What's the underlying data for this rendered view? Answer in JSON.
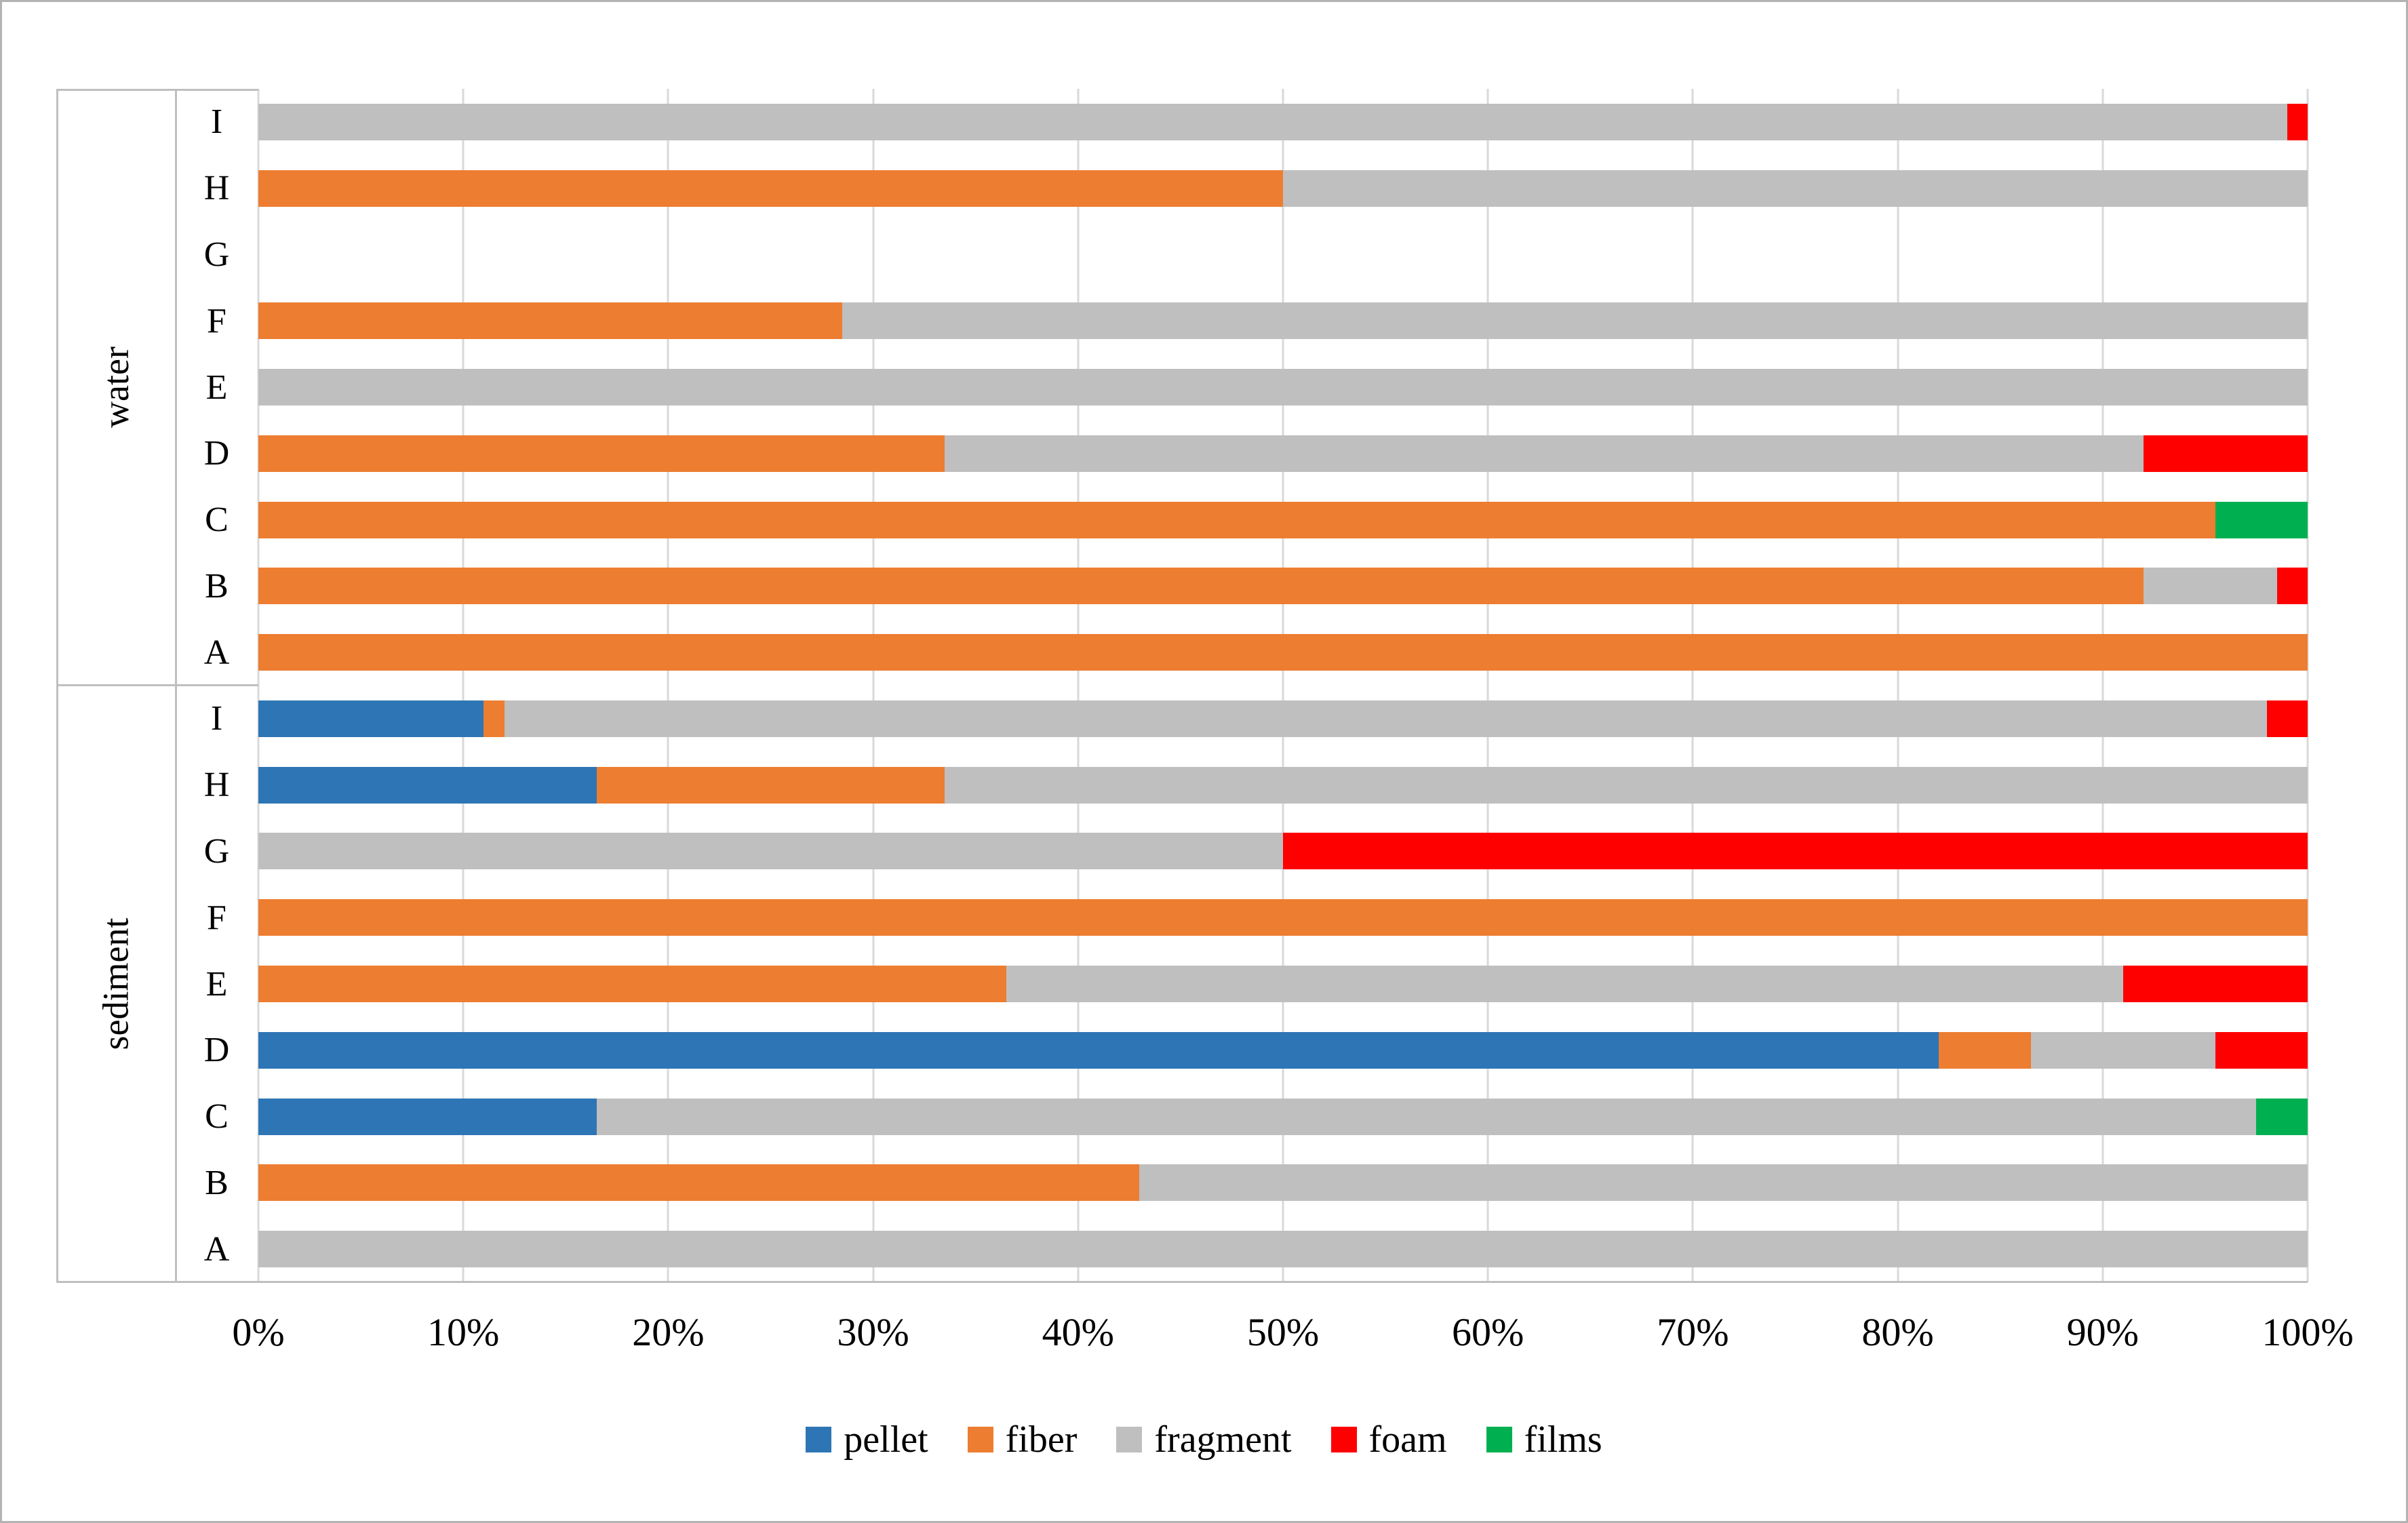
{
  "figure": {
    "background": "#ffffff",
    "border_color": "#b3b3b3",
    "gridline_color": "#d9d9d9",
    "axis_line_color": "#bfbfbf"
  },
  "chart_data": {
    "type": "bar",
    "orientation": "horizontal",
    "stacked": true,
    "title": "",
    "xlabel": "",
    "ylabel": "",
    "x_axis": {
      "min": 0,
      "max": 100,
      "unit": "%",
      "ticks": [
        "0%",
        "10%",
        "20%",
        "30%",
        "40%",
        "50%",
        "60%",
        "70%",
        "80%",
        "90%",
        "100%"
      ],
      "gridlines": true
    },
    "groups": [
      "water",
      "sediment"
    ],
    "series_names": [
      "pellet",
      "fiber",
      "fragment",
      "foam",
      "films"
    ],
    "series_colors": {
      "pellet": "#2E75B6",
      "fiber": "#ED7D31",
      "fragment": "#BFBFBF",
      "foam": "#FF0000",
      "films": "#00B050"
    },
    "legend": {
      "position": "bottom",
      "items": [
        {
          "label": "pellet",
          "color": "#2E75B6"
        },
        {
          "label": "fiber",
          "color": "#ED7D31"
        },
        {
          "label": "fragment",
          "color": "#BFBFBF"
        },
        {
          "label": "foam",
          "color": "#FF0000"
        },
        {
          "label": "films",
          "color": "#00B050"
        }
      ]
    },
    "rows": [
      {
        "group": "water",
        "label": "I",
        "values": {
          "pellet": 0,
          "fiber": 0,
          "fragment": 99,
          "foam": 1,
          "films": 0
        }
      },
      {
        "group": "water",
        "label": "H",
        "values": {
          "pellet": 0,
          "fiber": 50,
          "fragment": 50,
          "foam": 0,
          "films": 0
        }
      },
      {
        "group": "water",
        "label": "G",
        "values": {
          "pellet": 0,
          "fiber": 0,
          "fragment": 0,
          "foam": 0,
          "films": 0
        }
      },
      {
        "group": "water",
        "label": "F",
        "values": {
          "pellet": 0,
          "fiber": 28.5,
          "fragment": 71.5,
          "foam": 0,
          "films": 0
        }
      },
      {
        "group": "water",
        "label": "E",
        "values": {
          "pellet": 0,
          "fiber": 0,
          "fragment": 100,
          "foam": 0,
          "films": 0
        }
      },
      {
        "group": "water",
        "label": "D",
        "values": {
          "pellet": 0,
          "fiber": 33.5,
          "fragment": 58.5,
          "foam": 8,
          "films": 0
        }
      },
      {
        "group": "water",
        "label": "C",
        "values": {
          "pellet": 0,
          "fiber": 95.5,
          "fragment": 0,
          "foam": 0,
          "films": 4.5
        }
      },
      {
        "group": "water",
        "label": "B",
        "values": {
          "pellet": 0,
          "fiber": 92,
          "fragment": 6.5,
          "foam": 1.5,
          "films": 0
        }
      },
      {
        "group": "water",
        "label": "A",
        "values": {
          "pellet": 0,
          "fiber": 100,
          "fragment": 0,
          "foam": 0,
          "films": 0
        }
      },
      {
        "group": "sediment",
        "label": "I",
        "values": {
          "pellet": 11,
          "fiber": 1,
          "fragment": 86,
          "foam": 2,
          "films": 0
        }
      },
      {
        "group": "sediment",
        "label": "H",
        "values": {
          "pellet": 16.5,
          "fiber": 17,
          "fragment": 66.5,
          "foam": 0,
          "films": 0
        }
      },
      {
        "group": "sediment",
        "label": "G",
        "values": {
          "pellet": 0,
          "fiber": 0,
          "fragment": 50,
          "foam": 50,
          "films": 0
        }
      },
      {
        "group": "sediment",
        "label": "F",
        "values": {
          "pellet": 0,
          "fiber": 100,
          "fragment": 0,
          "foam": 0,
          "films": 0
        }
      },
      {
        "group": "sediment",
        "label": "E",
        "values": {
          "pellet": 0,
          "fiber": 36.5,
          "fragment": 54.5,
          "foam": 9,
          "films": 0
        }
      },
      {
        "group": "sediment",
        "label": "D",
        "values": {
          "pellet": 82,
          "fiber": 4.5,
          "fragment": 9,
          "foam": 4.5,
          "films": 0
        }
      },
      {
        "group": "sediment",
        "label": "C",
        "values": {
          "pellet": 16.5,
          "fiber": 0,
          "fragment": 81,
          "foam": 0,
          "films": 2.5
        }
      },
      {
        "group": "sediment",
        "label": "B",
        "values": {
          "pellet": 0,
          "fiber": 43,
          "fragment": 57,
          "foam": 0,
          "films": 0
        }
      },
      {
        "group": "sediment",
        "label": "A",
        "values": {
          "pellet": 0,
          "fiber": 0,
          "fragment": 100,
          "foam": 0,
          "films": 0
        }
      }
    ]
  }
}
